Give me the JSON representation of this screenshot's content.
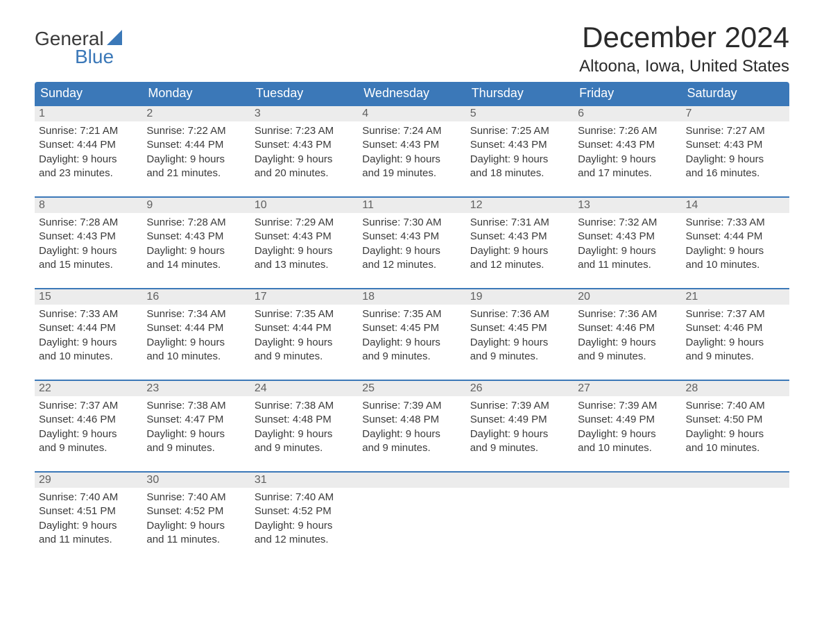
{
  "logo": {
    "line1": "General",
    "line2": "Blue",
    "sail_color": "#3b78b8"
  },
  "header": {
    "month_title": "December 2024",
    "location": "Altoona, Iowa, United States"
  },
  "colors": {
    "header_bg": "#3b78b8",
    "header_text": "#ffffff",
    "daynum_bg": "#ececec",
    "daynum_text": "#606060",
    "body_text": "#3a3a3a",
    "row_border": "#3b78b8",
    "page_bg": "#ffffff"
  },
  "weekdays": [
    "Sunday",
    "Monday",
    "Tuesday",
    "Wednesday",
    "Thursday",
    "Friday",
    "Saturday"
  ],
  "weeks": [
    [
      {
        "day": "1",
        "sunrise": "Sunrise: 7:21 AM",
        "sunset": "Sunset: 4:44 PM",
        "daylight1": "Daylight: 9 hours",
        "daylight2": "and 23 minutes."
      },
      {
        "day": "2",
        "sunrise": "Sunrise: 7:22 AM",
        "sunset": "Sunset: 4:44 PM",
        "daylight1": "Daylight: 9 hours",
        "daylight2": "and 21 minutes."
      },
      {
        "day": "3",
        "sunrise": "Sunrise: 7:23 AM",
        "sunset": "Sunset: 4:43 PM",
        "daylight1": "Daylight: 9 hours",
        "daylight2": "and 20 minutes."
      },
      {
        "day": "4",
        "sunrise": "Sunrise: 7:24 AM",
        "sunset": "Sunset: 4:43 PM",
        "daylight1": "Daylight: 9 hours",
        "daylight2": "and 19 minutes."
      },
      {
        "day": "5",
        "sunrise": "Sunrise: 7:25 AM",
        "sunset": "Sunset: 4:43 PM",
        "daylight1": "Daylight: 9 hours",
        "daylight2": "and 18 minutes."
      },
      {
        "day": "6",
        "sunrise": "Sunrise: 7:26 AM",
        "sunset": "Sunset: 4:43 PM",
        "daylight1": "Daylight: 9 hours",
        "daylight2": "and 17 minutes."
      },
      {
        "day": "7",
        "sunrise": "Sunrise: 7:27 AM",
        "sunset": "Sunset: 4:43 PM",
        "daylight1": "Daylight: 9 hours",
        "daylight2": "and 16 minutes."
      }
    ],
    [
      {
        "day": "8",
        "sunrise": "Sunrise: 7:28 AM",
        "sunset": "Sunset: 4:43 PM",
        "daylight1": "Daylight: 9 hours",
        "daylight2": "and 15 minutes."
      },
      {
        "day": "9",
        "sunrise": "Sunrise: 7:28 AM",
        "sunset": "Sunset: 4:43 PM",
        "daylight1": "Daylight: 9 hours",
        "daylight2": "and 14 minutes."
      },
      {
        "day": "10",
        "sunrise": "Sunrise: 7:29 AM",
        "sunset": "Sunset: 4:43 PM",
        "daylight1": "Daylight: 9 hours",
        "daylight2": "and 13 minutes."
      },
      {
        "day": "11",
        "sunrise": "Sunrise: 7:30 AM",
        "sunset": "Sunset: 4:43 PM",
        "daylight1": "Daylight: 9 hours",
        "daylight2": "and 12 minutes."
      },
      {
        "day": "12",
        "sunrise": "Sunrise: 7:31 AM",
        "sunset": "Sunset: 4:43 PM",
        "daylight1": "Daylight: 9 hours",
        "daylight2": "and 12 minutes."
      },
      {
        "day": "13",
        "sunrise": "Sunrise: 7:32 AM",
        "sunset": "Sunset: 4:43 PM",
        "daylight1": "Daylight: 9 hours",
        "daylight2": "and 11 minutes."
      },
      {
        "day": "14",
        "sunrise": "Sunrise: 7:33 AM",
        "sunset": "Sunset: 4:44 PM",
        "daylight1": "Daylight: 9 hours",
        "daylight2": "and 10 minutes."
      }
    ],
    [
      {
        "day": "15",
        "sunrise": "Sunrise: 7:33 AM",
        "sunset": "Sunset: 4:44 PM",
        "daylight1": "Daylight: 9 hours",
        "daylight2": "and 10 minutes."
      },
      {
        "day": "16",
        "sunrise": "Sunrise: 7:34 AM",
        "sunset": "Sunset: 4:44 PM",
        "daylight1": "Daylight: 9 hours",
        "daylight2": "and 10 minutes."
      },
      {
        "day": "17",
        "sunrise": "Sunrise: 7:35 AM",
        "sunset": "Sunset: 4:44 PM",
        "daylight1": "Daylight: 9 hours",
        "daylight2": "and 9 minutes."
      },
      {
        "day": "18",
        "sunrise": "Sunrise: 7:35 AM",
        "sunset": "Sunset: 4:45 PM",
        "daylight1": "Daylight: 9 hours",
        "daylight2": "and 9 minutes."
      },
      {
        "day": "19",
        "sunrise": "Sunrise: 7:36 AM",
        "sunset": "Sunset: 4:45 PM",
        "daylight1": "Daylight: 9 hours",
        "daylight2": "and 9 minutes."
      },
      {
        "day": "20",
        "sunrise": "Sunrise: 7:36 AM",
        "sunset": "Sunset: 4:46 PM",
        "daylight1": "Daylight: 9 hours",
        "daylight2": "and 9 minutes."
      },
      {
        "day": "21",
        "sunrise": "Sunrise: 7:37 AM",
        "sunset": "Sunset: 4:46 PM",
        "daylight1": "Daylight: 9 hours",
        "daylight2": "and 9 minutes."
      }
    ],
    [
      {
        "day": "22",
        "sunrise": "Sunrise: 7:37 AM",
        "sunset": "Sunset: 4:46 PM",
        "daylight1": "Daylight: 9 hours",
        "daylight2": "and 9 minutes."
      },
      {
        "day": "23",
        "sunrise": "Sunrise: 7:38 AM",
        "sunset": "Sunset: 4:47 PM",
        "daylight1": "Daylight: 9 hours",
        "daylight2": "and 9 minutes."
      },
      {
        "day": "24",
        "sunrise": "Sunrise: 7:38 AM",
        "sunset": "Sunset: 4:48 PM",
        "daylight1": "Daylight: 9 hours",
        "daylight2": "and 9 minutes."
      },
      {
        "day": "25",
        "sunrise": "Sunrise: 7:39 AM",
        "sunset": "Sunset: 4:48 PM",
        "daylight1": "Daylight: 9 hours",
        "daylight2": "and 9 minutes."
      },
      {
        "day": "26",
        "sunrise": "Sunrise: 7:39 AM",
        "sunset": "Sunset: 4:49 PM",
        "daylight1": "Daylight: 9 hours",
        "daylight2": "and 9 minutes."
      },
      {
        "day": "27",
        "sunrise": "Sunrise: 7:39 AM",
        "sunset": "Sunset: 4:49 PM",
        "daylight1": "Daylight: 9 hours",
        "daylight2": "and 10 minutes."
      },
      {
        "day": "28",
        "sunrise": "Sunrise: 7:40 AM",
        "sunset": "Sunset: 4:50 PM",
        "daylight1": "Daylight: 9 hours",
        "daylight2": "and 10 minutes."
      }
    ],
    [
      {
        "day": "29",
        "sunrise": "Sunrise: 7:40 AM",
        "sunset": "Sunset: 4:51 PM",
        "daylight1": "Daylight: 9 hours",
        "daylight2": "and 11 minutes."
      },
      {
        "day": "30",
        "sunrise": "Sunrise: 7:40 AM",
        "sunset": "Sunset: 4:52 PM",
        "daylight1": "Daylight: 9 hours",
        "daylight2": "and 11 minutes."
      },
      {
        "day": "31",
        "sunrise": "Sunrise: 7:40 AM",
        "sunset": "Sunset: 4:52 PM",
        "daylight1": "Daylight: 9 hours",
        "daylight2": "and 12 minutes."
      },
      {
        "day": "",
        "empty": true
      },
      {
        "day": "",
        "empty": true
      },
      {
        "day": "",
        "empty": true
      },
      {
        "day": "",
        "empty": true
      }
    ]
  ]
}
